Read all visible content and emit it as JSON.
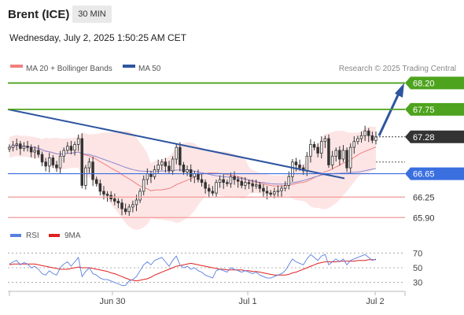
{
  "header": {
    "title": "Brent (ICE)",
    "timeframe": "30 MIN"
  },
  "datetime": "Wednesday, July 2, 2025 1:50:25 AM CET",
  "credit": "Research © 2025 Trading Central",
  "colors": {
    "resistance": "#4ea31e",
    "pivot": "#3a6fe0",
    "support": "#f29a9a",
    "last": "#333333",
    "trendline": "#2e55a0",
    "bollinger": "#fde2e2",
    "ma20": "#f08080",
    "ma50": "#8a8ad0",
    "rsi": "#5a7fe0",
    "rsi_ma": "#e02020",
    "up_candle": "#ffffff",
    "down_candle": "#333333"
  },
  "chart_data": [
    {
      "type": "candlestick",
      "legend": [
        {
          "name": "MA 20 + Bollinger Bands",
          "color": "#f08080"
        },
        {
          "name": "MA 50",
          "color": "#2e55a0"
        }
      ],
      "levels": [
        {
          "value": 68.2,
          "label": "68.20",
          "kind": "resistance"
        },
        {
          "value": 67.75,
          "label": "67.75",
          "kind": "resistance"
        },
        {
          "value": 67.28,
          "label": "67.28",
          "kind": "last"
        },
        {
          "value": 66.65,
          "label": "66.65",
          "kind": "pivot"
        },
        {
          "value": 66.25,
          "label": "66.25",
          "kind": "support"
        },
        {
          "value": 65.9,
          "label": "65.90",
          "kind": "support"
        }
      ],
      "ylim": [
        65.85,
        68.3
      ],
      "x_ticks": [
        "Jun 30",
        "Jul 1",
        "Jul 2"
      ],
      "annotations": [
        "bearish trendline",
        "arrow toward 68.20"
      ],
      "close": [
        67.1,
        67.14,
        67.16,
        67.08,
        67.12,
        67.1,
        67.02,
        67.05,
        66.98,
        66.85,
        66.78,
        66.92,
        66.8,
        66.75,
        66.95,
        67.05,
        67.12,
        67.05,
        67.15,
        67.25,
        66.45,
        66.75,
        66.85,
        66.55,
        66.48,
        66.35,
        66.3,
        66.28,
        66.22,
        66.18,
        66.15,
        66.05,
        66.0,
        66.08,
        66.12,
        66.2,
        66.35,
        66.55,
        66.65,
        66.6,
        66.72,
        66.8,
        66.85,
        66.78,
        66.7,
        66.9,
        67.1,
        66.8,
        66.68,
        66.72,
        66.6,
        66.65,
        66.55,
        66.5,
        66.4,
        66.35,
        66.32,
        66.5,
        66.55,
        66.5,
        66.48,
        66.6,
        66.55,
        66.52,
        66.45,
        66.5,
        66.48,
        66.44,
        66.46,
        66.4,
        66.35,
        66.32,
        66.3,
        66.34,
        66.36,
        66.4,
        66.45,
        66.6,
        66.85,
        66.8,
        66.75,
        66.7,
        66.95,
        67.15,
        67.1,
        67.0,
        67.2,
        67.25,
        66.8,
        66.95,
        67.05,
        66.9,
        67.05,
        66.75,
        67.1,
        67.2,
        67.25,
        67.3,
        67.38,
        67.3,
        67.22,
        67.28
      ]
    },
    {
      "type": "line",
      "legend": [
        {
          "name": "RSI",
          "color": "#5a7fe0"
        },
        {
          "name": "9MA",
          "color": "#e02020"
        }
      ],
      "y_ticks": [
        70,
        50,
        30
      ],
      "ylim": [
        20,
        80
      ],
      "series": [
        {
          "name": "RSI",
          "values": [
            55,
            58,
            60,
            54,
            57,
            55,
            50,
            52,
            48,
            42,
            40,
            46,
            42,
            40,
            50,
            55,
            58,
            52,
            58,
            64,
            38,
            45,
            50,
            42,
            40,
            36,
            34,
            34,
            32,
            30,
            28,
            26,
            26,
            32,
            34,
            38,
            46,
            54,
            58,
            54,
            60,
            62,
            64,
            58,
            52,
            60,
            66,
            54,
            50,
            52,
            48,
            50,
            46,
            44,
            40,
            38,
            36,
            46,
            48,
            46,
            44,
            50,
            48,
            46,
            44,
            46,
            44,
            42,
            44,
            40,
            38,
            36,
            36,
            38,
            40,
            42,
            46,
            54,
            62,
            58,
            56,
            54,
            62,
            68,
            64,
            60,
            66,
            68,
            54,
            58,
            62,
            58,
            62,
            54,
            60,
            62,
            64,
            66,
            68,
            64,
            60,
            62
          ]
        },
        {
          "name": "9MA",
          "values": [
            54,
            55,
            55,
            55,
            55,
            55,
            55,
            55,
            54,
            53,
            52,
            51,
            50,
            49,
            48,
            48,
            48,
            49,
            50,
            51,
            50,
            50,
            50,
            49,
            48,
            47,
            46,
            45,
            43,
            42,
            40,
            38,
            36,
            34,
            33,
            32,
            33,
            34,
            35,
            37,
            40,
            42,
            44,
            46,
            48,
            50,
            52,
            53,
            54,
            55,
            56,
            55,
            54,
            53,
            52,
            51,
            50,
            49,
            48,
            48,
            47,
            47,
            47,
            47,
            47,
            46,
            46,
            45,
            45,
            44,
            43,
            42,
            41,
            40,
            40,
            40,
            40,
            41,
            43,
            44,
            46,
            48,
            50,
            52,
            54,
            56,
            57,
            58,
            58,
            58,
            58,
            59,
            59,
            59,
            59,
            59,
            60,
            60,
            60,
            61,
            61,
            61
          ]
        }
      ]
    }
  ]
}
